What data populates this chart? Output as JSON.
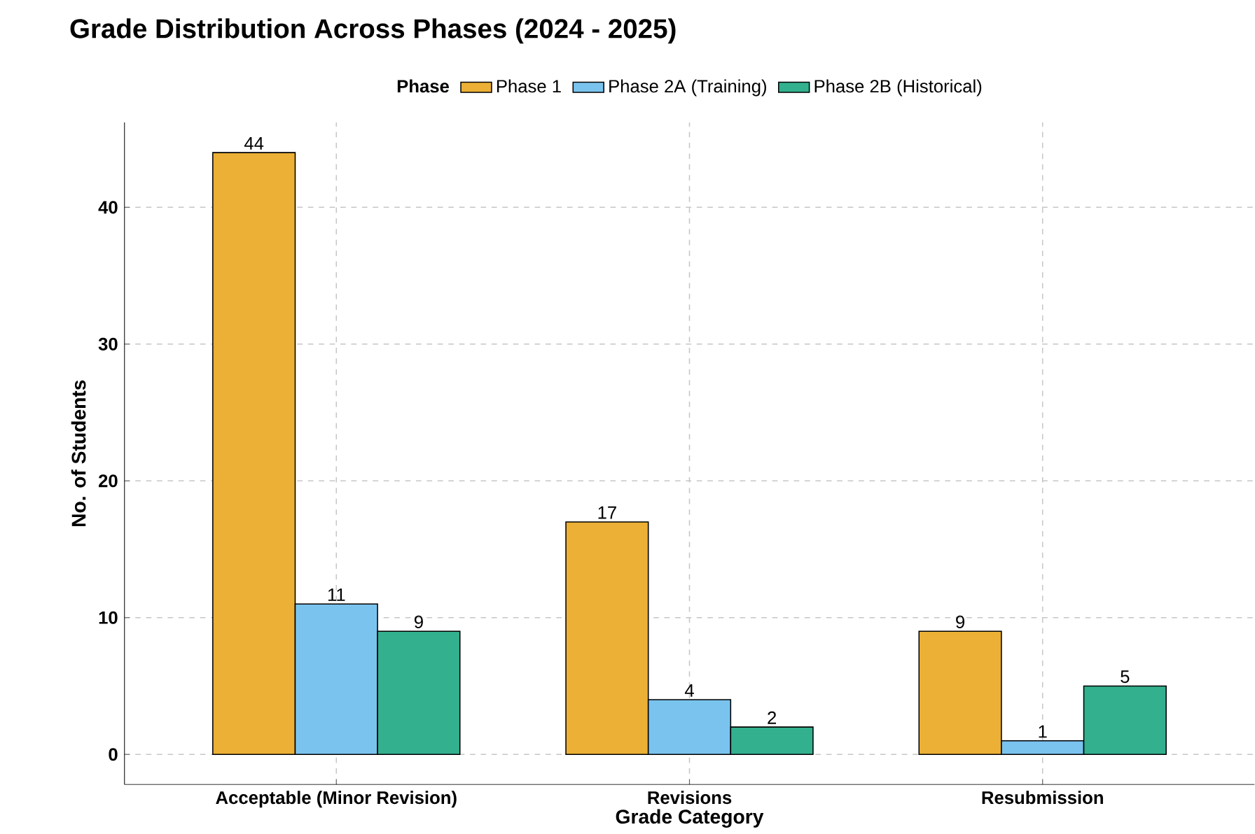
{
  "chart_data": {
    "type": "bar",
    "title": "Grade Distribution Across Phases (2024 - 2025)",
    "xlabel": "Grade Category",
    "ylabel": "No. of Students",
    "legend_title": "Phase",
    "categories": [
      "Acceptable (Minor Revision)",
      "Revisions",
      "Resubmission"
    ],
    "series": [
      {
        "name": "Phase 1",
        "color": "#ebb035",
        "values": [
          44,
          17,
          9
        ]
      },
      {
        "name": "Phase 2A (Training)",
        "color": "#7ac3ee",
        "values": [
          11,
          4,
          1
        ]
      },
      {
        "name": "Phase 2B (Historical)",
        "color": "#33b08e",
        "values": [
          9,
          2,
          5
        ]
      }
    ],
    "ylim": [
      -2.2,
      46.2
    ],
    "yticks": [
      0,
      10,
      20,
      30,
      40
    ],
    "grid": true,
    "legend": "top",
    "data_labels": true
  }
}
